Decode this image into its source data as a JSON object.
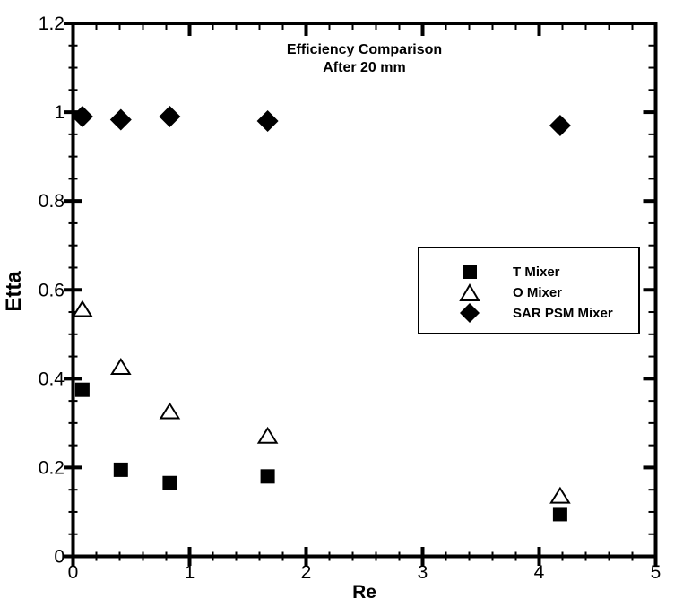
{
  "chart_data": {
    "type": "scatter",
    "title": "Efficiency Comparison",
    "subtitle": "After 20 mm",
    "xlabel": "Re",
    "ylabel": "Etta",
    "xlim": [
      0,
      5
    ],
    "ylim": [
      0,
      1.2
    ],
    "x_major_ticks": [
      0,
      1,
      2,
      3,
      4,
      5
    ],
    "x_tick_labels": [
      "0",
      "1",
      "2",
      "3",
      "4",
      "5"
    ],
    "x_minor_step": 0.2,
    "y_major_ticks": [
      0,
      0.2,
      0.4,
      0.6,
      0.8,
      1,
      1.2
    ],
    "y_tick_labels": [
      "0",
      "0.2",
      "0.4",
      "0.6",
      "0.8",
      "1",
      "1.2"
    ],
    "y_minor_step": 0.05,
    "grid": false,
    "legend_position": "middle-right",
    "x": [
      0.08,
      0.41,
      0.83,
      1.67,
      4.18
    ],
    "series": [
      {
        "name": "T Mixer",
        "marker": "square-filled",
        "values": [
          0.375,
          0.195,
          0.165,
          0.18,
          0.095
        ]
      },
      {
        "name": "O Mixer",
        "marker": "triangle-open",
        "values": [
          0.555,
          0.425,
          0.325,
          0.27,
          0.135
        ]
      },
      {
        "name": "SAR PSM Mixer",
        "marker": "diamond-filled",
        "values": [
          0.99,
          0.983,
          0.99,
          0.98,
          0.97
        ]
      }
    ],
    "colors": {
      "foreground": "#000000",
      "background": "#ffffff"
    }
  }
}
